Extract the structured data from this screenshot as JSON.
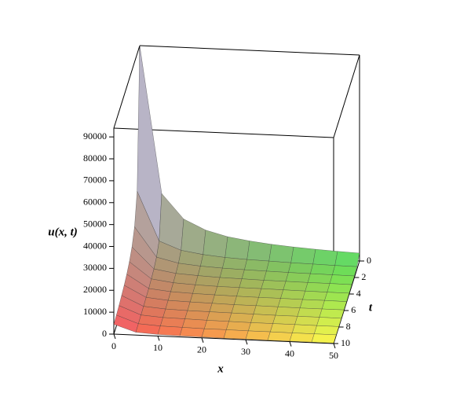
{
  "chart_data": {
    "type": "surface",
    "zlabel": "u(x, t)",
    "xlabel": "x",
    "tlabel": "t",
    "x": [
      0,
      5,
      10,
      15,
      20,
      25,
      30,
      35,
      40,
      45,
      50
    ],
    "t": [
      0,
      1,
      2,
      3,
      4,
      5,
      6,
      7,
      8,
      9,
      10
    ],
    "z": [
      [
        94000,
        26900,
        15700,
        11100,
        8500,
        7000,
        5900,
        5100,
        4500,
        4000,
        3600
      ],
      [
        31300,
        9000,
        5200,
        3700,
        2800,
        2300,
        2000,
        1700,
        1500,
        1300,
        1200
      ],
      [
        18800,
        5400,
        3100,
        2200,
        1700,
        1400,
        1200,
        1000,
        900,
        800,
        700
      ],
      [
        13400,
        3800,
        2200,
        1600,
        1200,
        1000,
        800,
        700,
        600,
        600,
        500
      ],
      [
        10400,
        3000,
        1700,
        1200,
        900,
        800,
        700,
        600,
        500,
        400,
        400
      ],
      [
        8500,
        2400,
        1400,
        1000,
        800,
        600,
        500,
        500,
        400,
        400,
        300
      ],
      [
        7200,
        2100,
        1200,
        900,
        700,
        500,
        500,
        400,
        300,
        300,
        300
      ],
      [
        6300,
        1800,
        1000,
        700,
        600,
        500,
        400,
        300,
        300,
        300,
        200
      ],
      [
        5500,
        1600,
        900,
        700,
        500,
        400,
        300,
        300,
        300,
        200,
        200
      ],
      [
        4900,
        1400,
        800,
        600,
        400,
        400,
        300,
        300,
        200,
        200,
        200
      ],
      [
        4500,
        1300,
        700,
        500,
        400,
        300,
        300,
        200,
        200,
        200,
        200
      ]
    ],
    "xlim": [
      0,
      50
    ],
    "tlim": [
      0,
      10
    ],
    "zlim": [
      0,
      94000
    ],
    "xticks": [
      0,
      10,
      20,
      30,
      40,
      50
    ],
    "tticks": [
      0,
      2,
      4,
      6,
      8,
      10
    ],
    "zticks": [
      0,
      10000,
      20000,
      30000,
      40000,
      50000,
      60000,
      70000,
      80000,
      90000
    ],
    "corner_colors": [
      "#9a8c5c",
      "#44e044",
      "#ff4040",
      "#ffff44"
    ],
    "peak_color": "#c8c8ff"
  }
}
